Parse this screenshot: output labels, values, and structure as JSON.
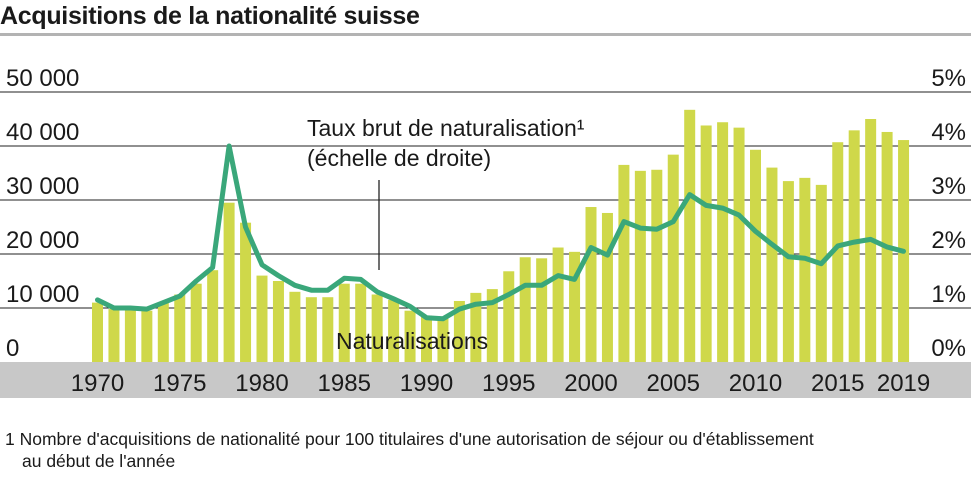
{
  "chart_data": {
    "type": "bar",
    "title": "Acquisitions de la nationalité suisse",
    "x": [
      1970,
      1971,
      1972,
      1973,
      1974,
      1975,
      1976,
      1977,
      1978,
      1979,
      1980,
      1981,
      1982,
      1983,
      1984,
      1985,
      1986,
      1987,
      1988,
      1989,
      1990,
      1991,
      1992,
      1993,
      1994,
      1995,
      1996,
      1997,
      1998,
      1999,
      2000,
      2001,
      2002,
      2003,
      2004,
      2005,
      2006,
      2007,
      2008,
      2009,
      2010,
      2011,
      2012,
      2013,
      2014,
      2015,
      2016,
      2017,
      2018,
      2019
    ],
    "x_tick_labels": [
      "1970",
      "1975",
      "1980",
      "1985",
      "1990",
      "1995",
      "2000",
      "2005",
      "2010",
      "2015",
      "2019"
    ],
    "y_left_ticks": [
      "0",
      "10 000",
      "20 000",
      "30 000",
      "40 000",
      "50 000"
    ],
    "y_right_ticks": [
      "0%",
      "1%",
      "2%",
      "3%",
      "4%",
      "5%"
    ],
    "ylim_left": [
      0,
      50000
    ],
    "ylim_right": [
      0,
      5
    ],
    "grid": true,
    "series": [
      {
        "name": "Naturalisations",
        "type": "bar",
        "axis": "left",
        "color": "#cfd84a",
        "values": [
          11000,
          9800,
          9800,
          9500,
          11000,
          12500,
          14500,
          17000,
          29500,
          25800,
          16000,
          15000,
          13000,
          12000,
          12000,
          14500,
          14500,
          12500,
          11500,
          9500,
          8600,
          8400,
          11300,
          12800,
          13500,
          16800,
          19400,
          19200,
          21200,
          20400,
          28700,
          27600,
          36500,
          35400,
          35600,
          38400,
          46700,
          43800,
          44400,
          43400,
          39300,
          36000,
          33500,
          34100,
          32800,
          40700,
          42900,
          45000,
          42600,
          41100
        ]
      },
      {
        "name": "Taux brut de naturalisation¹",
        "name_note": "(échelle de droite)",
        "type": "line",
        "axis": "right",
        "color": "#3aa77a",
        "values": [
          1.15,
          1.0,
          1.0,
          0.98,
          1.1,
          1.22,
          1.5,
          1.75,
          4.0,
          2.5,
          1.8,
          1.6,
          1.42,
          1.33,
          1.33,
          1.55,
          1.53,
          1.3,
          1.17,
          1.03,
          0.82,
          0.8,
          0.98,
          1.07,
          1.1,
          1.25,
          1.42,
          1.42,
          1.6,
          1.53,
          2.12,
          1.98,
          2.6,
          2.48,
          2.46,
          2.6,
          3.1,
          2.9,
          2.85,
          2.72,
          2.42,
          2.18,
          1.95,
          1.92,
          1.82,
          2.15,
          2.22,
          2.27,
          2.13,
          2.05
        ]
      }
    ]
  },
  "footnote": {
    "line1": "1 Nombre d'acquisitions de nationalité pour 100 titulaires d'une autorisation de séjour ou d'établissement",
    "line2": "au début de l'année"
  }
}
